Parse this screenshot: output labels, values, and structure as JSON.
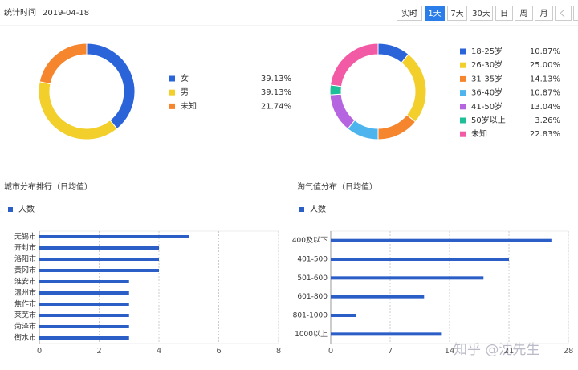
{
  "header": {
    "label": "统计时间",
    "date": "2019-04-18",
    "buttons": [
      "实时",
      "1天",
      "7天",
      "30天",
      "日",
      "周",
      "月"
    ],
    "active": 1
  },
  "watermark": "知乎 @沈先生",
  "chart_data": [
    {
      "type": "pie",
      "categories": [
        "女",
        "男",
        "未知"
      ],
      "values": [
        39.13,
        39.13,
        21.74
      ],
      "value_labels": [
        "39.13%",
        "39.13%",
        "21.74%"
      ],
      "colors": [
        "#2b63d9",
        "#f2cf2a",
        "#f5862e"
      ]
    },
    {
      "type": "pie",
      "categories": [
        "18-25岁",
        "26-30岁",
        "31-35岁",
        "36-40岁",
        "41-50岁",
        "50岁以上",
        "未知"
      ],
      "values": [
        10.87,
        25,
        14.13,
        10.87,
        13.04,
        3.26,
        22.83
      ],
      "value_labels": [
        "10.87%",
        "25.00%",
        "14.13%",
        "10.87%",
        "13.04%",
        "3.26%",
        "22.83%"
      ],
      "colors": [
        "#2b63d9",
        "#f2cf2a",
        "#f5862e",
        "#4db4ee",
        "#b565e0",
        "#1cbf97",
        "#f25aa5"
      ]
    },
    {
      "type": "hbar",
      "title": "城市分布排行（日均值）",
      "categories": [
        "无锡市",
        "开封市",
        "洛阳市",
        "黄冈市",
        "淮安市",
        "温州市",
        "焦作市",
        "莱芜市",
        "菏泽市",
        "衡水市"
      ],
      "series": [
        {
          "name": "人数",
          "color": "#2b5fc7",
          "values": [
            5,
            4,
            4,
            4,
            3,
            3,
            3,
            3,
            3,
            3
          ]
        }
      ],
      "xlim": [
        0,
        8
      ],
      "xticks": [
        0,
        2,
        4,
        6,
        8
      ],
      "grid": true
    },
    {
      "type": "hbar",
      "title": "淘气值分布（日均值）",
      "categories": [
        "400及以下",
        "401-500",
        "501-600",
        "601-800",
        "801-1000",
        "1000以上"
      ],
      "series": [
        {
          "name": "人数",
          "color": "#2b5fc7",
          "values": [
            26,
            21,
            18,
            11,
            3,
            13
          ]
        }
      ],
      "xlim": [
        0,
        28
      ],
      "xticks": [
        0,
        7,
        14,
        21,
        28
      ],
      "grid": true
    }
  ]
}
